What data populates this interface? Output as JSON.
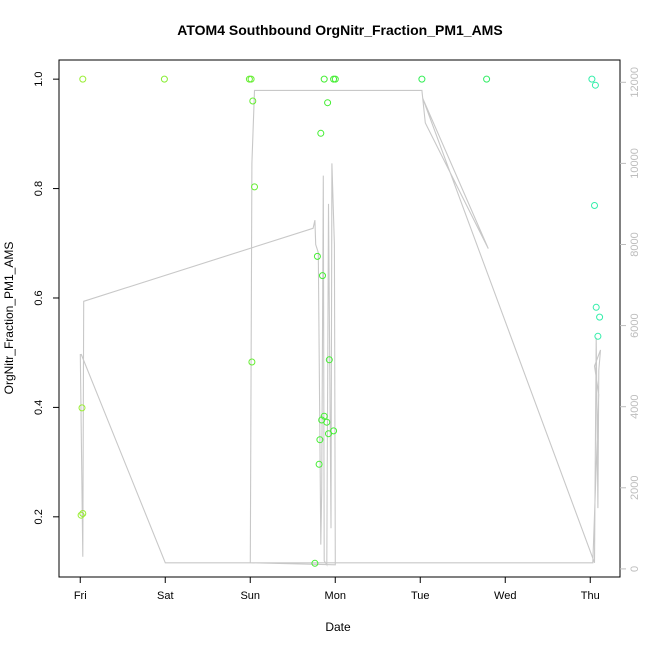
{
  "chart_data": {
    "type": "scatter",
    "title": "ATOM4 Southbound OrgNitr_Fraction_PM1_AMS",
    "xlabel": "Date",
    "ylabel": "OrgNitr_Fraction_PM1_AMS",
    "x_unit": "days",
    "x_ticks": [
      {
        "value": 0,
        "label": "Fri"
      },
      {
        "value": 1,
        "label": "Sat"
      },
      {
        "value": 2,
        "label": "Sun"
      },
      {
        "value": 3,
        "label": "Mon"
      },
      {
        "value": 4,
        "label": "Tue"
      },
      {
        "value": 5,
        "label": "Wed"
      },
      {
        "value": 6,
        "label": "Thu"
      }
    ],
    "xlim": [
      -0.25,
      6.35
    ],
    "ylim": [
      0.09,
      1.035
    ],
    "y_ticks": [
      0.2,
      0.4,
      0.6,
      0.8,
      1.0
    ],
    "y_tick_labels": [
      "0.2",
      "0.4",
      "0.6",
      "0.8",
      "1.0"
    ],
    "y2lim": [
      -200,
      12550
    ],
    "y2_ticks": [
      0,
      2000,
      4000,
      6000,
      8000,
      10000,
      12000
    ],
    "y2_tick_labels": [
      "0",
      "2000",
      "4000",
      "6000",
      "8000",
      "10000",
      "12000"
    ],
    "grid": false,
    "points": [
      {
        "x": 0.01,
        "y": 0.203,
        "color": "#99ee33"
      },
      {
        "x": 0.03,
        "y": 0.206,
        "color": "#99ee33"
      },
      {
        "x": 0.02,
        "y": 0.399,
        "color": "#99ee33"
      },
      {
        "x": 0.03,
        "y": 1.0,
        "color": "#99ee33"
      },
      {
        "x": 0.99,
        "y": 1.0,
        "color": "#88ee33"
      },
      {
        "x": 1.99,
        "y": 1.0,
        "color": "#66ee33"
      },
      {
        "x": 2.01,
        "y": 1.0,
        "color": "#66ee33"
      },
      {
        "x": 2.03,
        "y": 0.96,
        "color": "#66ee33"
      },
      {
        "x": 2.05,
        "y": 0.803,
        "color": "#66ee33"
      },
      {
        "x": 2.02,
        "y": 0.483,
        "color": "#66ee33"
      },
      {
        "x": 2.76,
        "y": 0.115,
        "color": "#44ee33"
      },
      {
        "x": 2.79,
        "y": 0.676,
        "color": "#44ee33"
      },
      {
        "x": 2.81,
        "y": 0.296,
        "color": "#44ee33"
      },
      {
        "x": 2.82,
        "y": 0.341,
        "color": "#44ee33"
      },
      {
        "x": 2.83,
        "y": 0.901,
        "color": "#44ee33"
      },
      {
        "x": 2.84,
        "y": 0.377,
        "color": "#44ee33"
      },
      {
        "x": 2.85,
        "y": 0.641,
        "color": "#44ee33"
      },
      {
        "x": 2.87,
        "y": 0.384,
        "color": "#44ee33"
      },
      {
        "x": 2.87,
        "y": 1.0,
        "color": "#44ee33"
      },
      {
        "x": 2.9,
        "y": 0.373,
        "color": "#44ee33"
      },
      {
        "x": 2.91,
        "y": 0.957,
        "color": "#44ee33"
      },
      {
        "x": 2.92,
        "y": 0.352,
        "color": "#44ee33"
      },
      {
        "x": 2.93,
        "y": 0.487,
        "color": "#44ee33"
      },
      {
        "x": 2.98,
        "y": 0.357,
        "color": "#44ee33"
      },
      {
        "x": 2.98,
        "y": 1.0,
        "color": "#44ee33"
      },
      {
        "x": 3.0,
        "y": 1.0,
        "color": "#44ee33"
      },
      {
        "x": 4.02,
        "y": 1.0,
        "color": "#33ee55"
      },
      {
        "x": 4.78,
        "y": 1.0,
        "color": "#33ee66"
      },
      {
        "x": 6.02,
        "y": 1.0,
        "color": "#33eeaa"
      },
      {
        "x": 6.06,
        "y": 0.989,
        "color": "#33eeaa"
      },
      {
        "x": 6.05,
        "y": 0.769,
        "color": "#33eeaa"
      },
      {
        "x": 6.07,
        "y": 0.583,
        "color": "#33eeaa"
      },
      {
        "x": 6.11,
        "y": 0.565,
        "color": "#33eeaa"
      },
      {
        "x": 6.09,
        "y": 0.53,
        "color": "#33eeaa"
      }
    ],
    "secondary_line": {
      "color": "#c8c8c8",
      "points": [
        [
          0.0,
          5300
        ],
        [
          0.03,
          300
        ],
        [
          0.04,
          6600
        ],
        [
          2.74,
          8400
        ],
        [
          2.76,
          8600
        ],
        [
          2.77,
          8000
        ],
        [
          2.8,
          7800
        ],
        [
          2.83,
          600
        ],
        [
          2.84,
          1900
        ],
        [
          2.86,
          9700
        ],
        [
          2.87,
          200
        ],
        [
          2.9,
          100
        ],
        [
          2.92,
          9000
        ],
        [
          2.95,
          1000
        ],
        [
          2.96,
          10000
        ],
        [
          2.99,
          8000
        ],
        [
          3.0,
          100
        ],
        [
          2.0,
          150
        ],
        [
          2.02,
          10000
        ],
        [
          2.05,
          11800
        ],
        [
          4.02,
          11800
        ],
        [
          4.06,
          11000
        ],
        [
          4.8,
          7900
        ],
        [
          4.03,
          11600
        ],
        [
          6.05,
          150
        ],
        [
          6.07,
          5700
        ],
        [
          6.09,
          1500
        ],
        [
          6.1,
          4900
        ],
        [
          6.12,
          5400
        ],
        [
          6.05,
          5000
        ],
        [
          6.1,
          4300
        ],
        [
          6.03,
          150
        ],
        [
          1.0,
          150
        ],
        [
          0.01,
          5300
        ]
      ]
    }
  }
}
